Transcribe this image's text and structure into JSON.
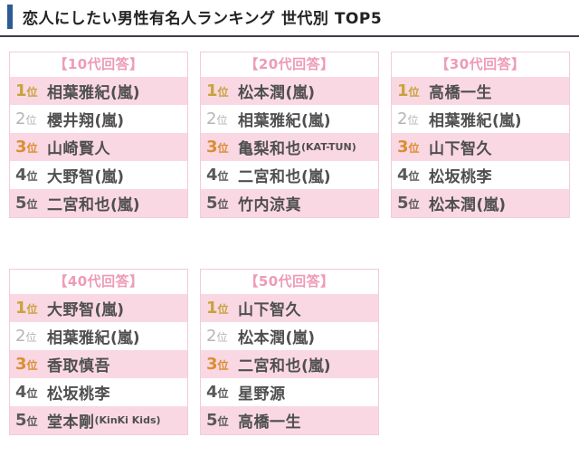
{
  "page": {
    "title": "恋人にしたい男性有名人ランキング 世代別 TOP5"
  },
  "colors": {
    "accent": "#2d5c94",
    "underline": "#3a3f48",
    "row_pink": "#f9d8e3",
    "header_text": "#ee9ab8",
    "table_border": "#f3cbd9",
    "rank1_gold": "#c9a23c",
    "rank2_gray": "#b5b5b5",
    "rank3_orange": "#dc8d33",
    "rank_default": "#595959",
    "name_text": "#4f4f4f"
  },
  "rank_suffix": "位",
  "tables": [
    {
      "header": "【10代回答】",
      "entries": [
        {
          "rank": "1",
          "name": "相葉雅紀",
          "affiliation": "(嵐)"
        },
        {
          "rank": "2",
          "name": "櫻井翔",
          "affiliation": "(嵐)"
        },
        {
          "rank": "3",
          "name": "山崎賢人",
          "affiliation": ""
        },
        {
          "rank": "4",
          "name": "大野智",
          "affiliation": "(嵐)"
        },
        {
          "rank": "5",
          "name": "二宮和也",
          "affiliation": "(嵐)"
        }
      ]
    },
    {
      "header": "【20代回答】",
      "entries": [
        {
          "rank": "1",
          "name": "松本潤",
          "affiliation": "(嵐)"
        },
        {
          "rank": "2",
          "name": "相葉雅紀",
          "affiliation": "(嵐)"
        },
        {
          "rank": "3",
          "name": "亀梨和也",
          "affiliation": "(KAT-TUN)"
        },
        {
          "rank": "4",
          "name": "二宮和也",
          "affiliation": "(嵐)"
        },
        {
          "rank": "5",
          "name": "竹内涼真",
          "affiliation": ""
        }
      ]
    },
    {
      "header": "【30代回答】",
      "entries": [
        {
          "rank": "1",
          "name": "高橋一生",
          "affiliation": ""
        },
        {
          "rank": "2",
          "name": "相葉雅紀",
          "affiliation": "(嵐)"
        },
        {
          "rank": "3",
          "name": "山下智久",
          "affiliation": ""
        },
        {
          "rank": "4",
          "name": "松坂桃李",
          "affiliation": ""
        },
        {
          "rank": "5",
          "name": "松本潤",
          "affiliation": "(嵐)"
        }
      ]
    },
    {
      "header": "【40代回答】",
      "entries": [
        {
          "rank": "1",
          "name": "大野智",
          "affiliation": "(嵐)"
        },
        {
          "rank": "2",
          "name": "相葉雅紀",
          "affiliation": "(嵐)"
        },
        {
          "rank": "3",
          "name": "香取慎吾",
          "affiliation": ""
        },
        {
          "rank": "4",
          "name": "松坂桃李",
          "affiliation": ""
        },
        {
          "rank": "5",
          "name": "堂本剛",
          "affiliation": "(KinKi Kids)"
        }
      ]
    },
    {
      "header": "【50代回答】",
      "entries": [
        {
          "rank": "1",
          "name": "山下智久",
          "affiliation": ""
        },
        {
          "rank": "2",
          "name": "松本潤",
          "affiliation": "(嵐)"
        },
        {
          "rank": "3",
          "name": "二宮和也",
          "affiliation": "(嵐)"
        },
        {
          "rank": "4",
          "name": "星野源",
          "affiliation": ""
        },
        {
          "rank": "5",
          "name": "高橋一生",
          "affiliation": ""
        }
      ]
    }
  ]
}
